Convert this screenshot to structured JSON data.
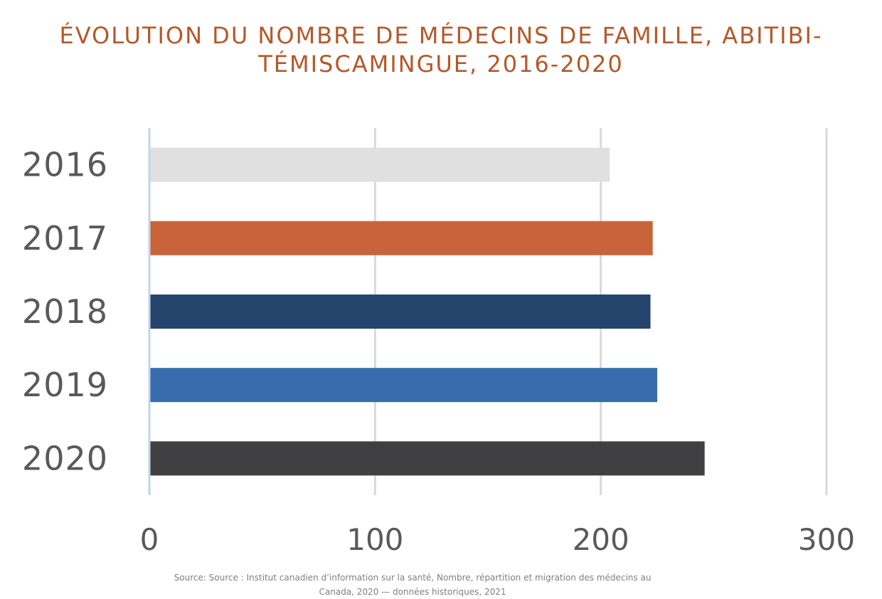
{
  "chart_data": {
    "type": "bar",
    "orientation": "horizontal",
    "title": "ÉVOLUTION DU NOMBRE DE MÉDECINS DE FAMILLE, ABITIBI-TÉMISCAMINGUE, 2016-2020",
    "categories": [
      "2016",
      "2017",
      "2018",
      "2019",
      "2020"
    ],
    "values": [
      204,
      223,
      222,
      225,
      246
    ],
    "colors": [
      "#e0e0e0",
      "#c9643a",
      "#24446c",
      "#386bab",
      "#404042"
    ],
    "xlim": [
      0,
      300
    ],
    "xticks": [
      0,
      100,
      200,
      300
    ],
    "grid": true,
    "legend": "none"
  },
  "source": "Source: Source : Institut canadien d’information sur la santé, Nombre, répartition et migration des médecins au Canada, 2020 — données historiques, 2021"
}
